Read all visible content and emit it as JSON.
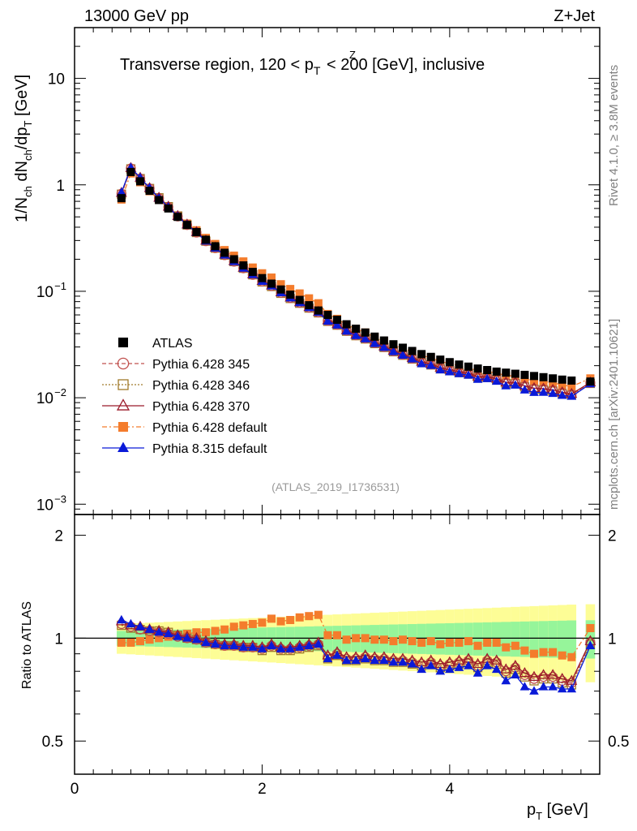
{
  "header": {
    "energy_label": "13000 GeV pp",
    "process_label": "Z+Jet",
    "plot_title_main": "Transverse region, 120 < p",
    "plot_title_sup": "Z",
    "plot_title_sub": "T",
    "plot_title_rest": " < 200 [GeV], inclusive",
    "analysis_id": "(ATLAS_2019_I1736531)"
  },
  "side": {
    "rivet_label": "Rivet 4.1.0, ≥ 3.8M events",
    "mcplots_label": "mcplots.cern.ch [arXiv:2401.10621]"
  },
  "axes": {
    "y_main": "1/N",
    "y_ch1": "ch",
    "y_mid": " dN",
    "y_ch2": "ch",
    "y_mid2": "/dp",
    "y_T": "T",
    "y_unit": " [GeV]",
    "y_ratio": "Ratio to ATLAS",
    "x_p": "p",
    "x_T": "T",
    "x_unit": " [GeV]"
  },
  "legend": [
    {
      "label": "ATLAS",
      "color": "#000000"
    },
    {
      "label": "Pythia 6.428 345",
      "color": "#c0504d"
    },
    {
      "label": "Pythia 6.428 346",
      "color": "#a07a2a"
    },
    {
      "label": "Pythia 6.428 370",
      "color": "#9b1b2a"
    },
    {
      "label": "Pythia 6.428 default",
      "color": "#f47c2c"
    },
    {
      "label": "Pythia 8.315 default",
      "color": "#0a1ad8"
    }
  ],
  "chart_data": {
    "type": "line",
    "title": "Transverse region, 120 < pT^Z < 200 [GeV], inclusive",
    "xlabel": "pT [GeV]",
    "ylabel": "1/Nch dNch/dpT [GeV]",
    "yscale": "log",
    "xlim": [
      0,
      5.6
    ],
    "ylim": [
      0.0008,
      30
    ],
    "x_ticks": [
      "0",
      "2",
      "4"
    ],
    "y_ticks": [
      "10^-3",
      "10^-2",
      "10^-1",
      "1",
      "10"
    ],
    "x": [
      0.5,
      0.6,
      0.7,
      0.8,
      0.9,
      1.0,
      1.1,
      1.2,
      1.3,
      1.4,
      1.5,
      1.6,
      1.7,
      1.8,
      1.9,
      2.0,
      2.1,
      2.2,
      2.3,
      2.4,
      2.5,
      2.6,
      2.7,
      2.8,
      2.9,
      3.0,
      3.1,
      3.2,
      3.3,
      3.4,
      3.5,
      3.6,
      3.7,
      3.8,
      3.9,
      4.0,
      4.1,
      4.2,
      4.3,
      4.4,
      4.5,
      4.6,
      4.7,
      4.8,
      4.9,
      5.0,
      5.1,
      5.2,
      5.3,
      5.5
    ],
    "atlas": [
      0.75,
      1.32,
      1.08,
      0.88,
      0.72,
      0.6,
      0.5,
      0.42,
      0.36,
      0.305,
      0.265,
      0.23,
      0.2,
      0.175,
      0.152,
      0.133,
      0.118,
      0.104,
      0.093,
      0.083,
      0.074,
      0.066,
      0.06,
      0.054,
      0.049,
      0.0445,
      0.041,
      0.0375,
      0.0345,
      0.0318,
      0.0295,
      0.0275,
      0.0257,
      0.0242,
      0.0228,
      0.0216,
      0.0205,
      0.0196,
      0.0188,
      0.0182,
      0.0176,
      0.0172,
      0.0168,
      0.0164,
      0.016,
      0.0156,
      0.0152,
      0.0148,
      0.0145,
      0.0142
    ],
    "ratio_band_inner": 0.05,
    "ratio_band_outer": 0.1,
    "series": [
      {
        "name": "Pythia 6.428 345",
        "ratio": [
          1.1,
          1.08,
          1.06,
          1.05,
          1.04,
          1.03,
          1.01,
          1.0,
          0.99,
          0.97,
          0.96,
          0.95,
          0.95,
          0.94,
          0.94,
          0.93,
          0.95,
          0.93,
          0.93,
          0.94,
          0.95,
          0.96,
          0.88,
          0.9,
          0.87,
          0.87,
          0.88,
          0.87,
          0.87,
          0.86,
          0.86,
          0.85,
          0.84,
          0.85,
          0.83,
          0.84,
          0.85,
          0.86,
          0.83,
          0.86,
          0.85,
          0.8,
          0.82,
          0.78,
          0.76,
          0.77,
          0.77,
          0.75,
          0.74,
          0.97
        ]
      },
      {
        "name": "Pythia 6.428 346",
        "ratio": [
          1.09,
          1.07,
          1.06,
          1.05,
          1.05,
          1.04,
          1.02,
          1.0,
          0.99,
          0.97,
          0.96,
          0.95,
          0.95,
          0.94,
          0.94,
          0.92,
          0.94,
          0.92,
          0.92,
          0.93,
          0.94,
          0.95,
          0.87,
          0.89,
          0.86,
          0.86,
          0.87,
          0.86,
          0.86,
          0.85,
          0.85,
          0.84,
          0.83,
          0.84,
          0.82,
          0.83,
          0.84,
          0.85,
          0.82,
          0.85,
          0.84,
          0.79,
          0.81,
          0.77,
          0.75,
          0.76,
          0.76,
          0.74,
          0.73,
          0.96
        ]
      },
      {
        "name": "Pythia 6.428 370",
        "ratio": [
          1.12,
          1.09,
          1.08,
          1.06,
          1.05,
          1.04,
          1.02,
          1.01,
          1.0,
          0.98,
          0.97,
          0.96,
          0.96,
          0.95,
          0.95,
          0.94,
          0.96,
          0.94,
          0.94,
          0.95,
          0.96,
          0.97,
          0.89,
          0.91,
          0.88,
          0.88,
          0.89,
          0.88,
          0.88,
          0.87,
          0.87,
          0.86,
          0.85,
          0.86,
          0.84,
          0.85,
          0.86,
          0.87,
          0.84,
          0.87,
          0.86,
          0.81,
          0.83,
          0.79,
          0.77,
          0.78,
          0.78,
          0.76,
          0.75,
          0.98
        ]
      },
      {
        "name": "Pythia 6.428 default",
        "ratio": [
          0.97,
          0.97,
          0.98,
          0.99,
          1.0,
          1.01,
          1.02,
          1.03,
          1.04,
          1.04,
          1.05,
          1.06,
          1.08,
          1.09,
          1.1,
          1.11,
          1.14,
          1.12,
          1.13,
          1.15,
          1.16,
          1.17,
          1.02,
          1.02,
          0.99,
          1.0,
          1.0,
          0.99,
          0.99,
          0.98,
          0.99,
          0.98,
          0.97,
          0.98,
          0.96,
          0.97,
          0.97,
          0.98,
          0.95,
          0.97,
          0.97,
          0.94,
          0.95,
          0.92,
          0.9,
          0.91,
          0.91,
          0.89,
          0.88,
          1.07
        ]
      },
      {
        "name": "Pythia 8.315 default",
        "ratio": [
          1.13,
          1.1,
          1.08,
          1.06,
          1.04,
          1.03,
          1.01,
          1.0,
          0.99,
          0.97,
          0.96,
          0.95,
          0.95,
          0.94,
          0.94,
          0.93,
          0.95,
          0.93,
          0.93,
          0.94,
          0.95,
          0.96,
          0.87,
          0.89,
          0.86,
          0.86,
          0.87,
          0.86,
          0.86,
          0.85,
          0.85,
          0.84,
          0.81,
          0.83,
          0.8,
          0.81,
          0.82,
          0.83,
          0.79,
          0.83,
          0.81,
          0.75,
          0.78,
          0.72,
          0.7,
          0.72,
          0.72,
          0.71,
          0.71,
          0.95
        ]
      }
    ],
    "ratio_ylim": [
      0.4,
      2.3
    ],
    "ratio_y_ticks": [
      "0.5",
      "1",
      "2"
    ]
  }
}
